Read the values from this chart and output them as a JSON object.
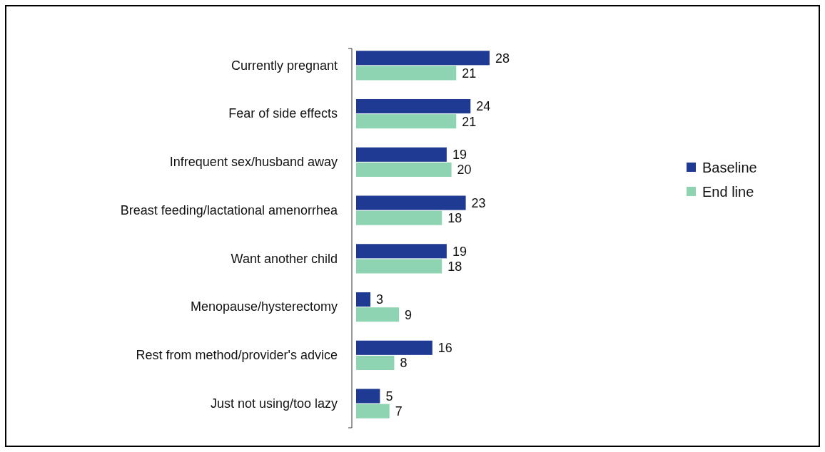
{
  "chart_data": {
    "type": "bar",
    "orientation": "horizontal",
    "categories": [
      "Currently pregnant",
      "Fear of side effects",
      "Infrequent sex/husband away",
      "Breast feeding/lactational amenorrhea",
      "Want another child",
      "Menopause/hysterectomy",
      "Rest from method/provider's advice",
      "Just not using/too lazy"
    ],
    "series": [
      {
        "name": "Baseline",
        "color": "#1f3a93",
        "values": [
          28,
          24,
          19,
          23,
          19,
          3,
          16,
          5
        ]
      },
      {
        "name": "End line",
        "color": "#8fd4b2",
        "values": [
          21,
          21,
          20,
          18,
          18,
          9,
          8,
          7
        ]
      }
    ],
    "data_labels": true,
    "legend": "right",
    "tick_labels": "y"
  }
}
